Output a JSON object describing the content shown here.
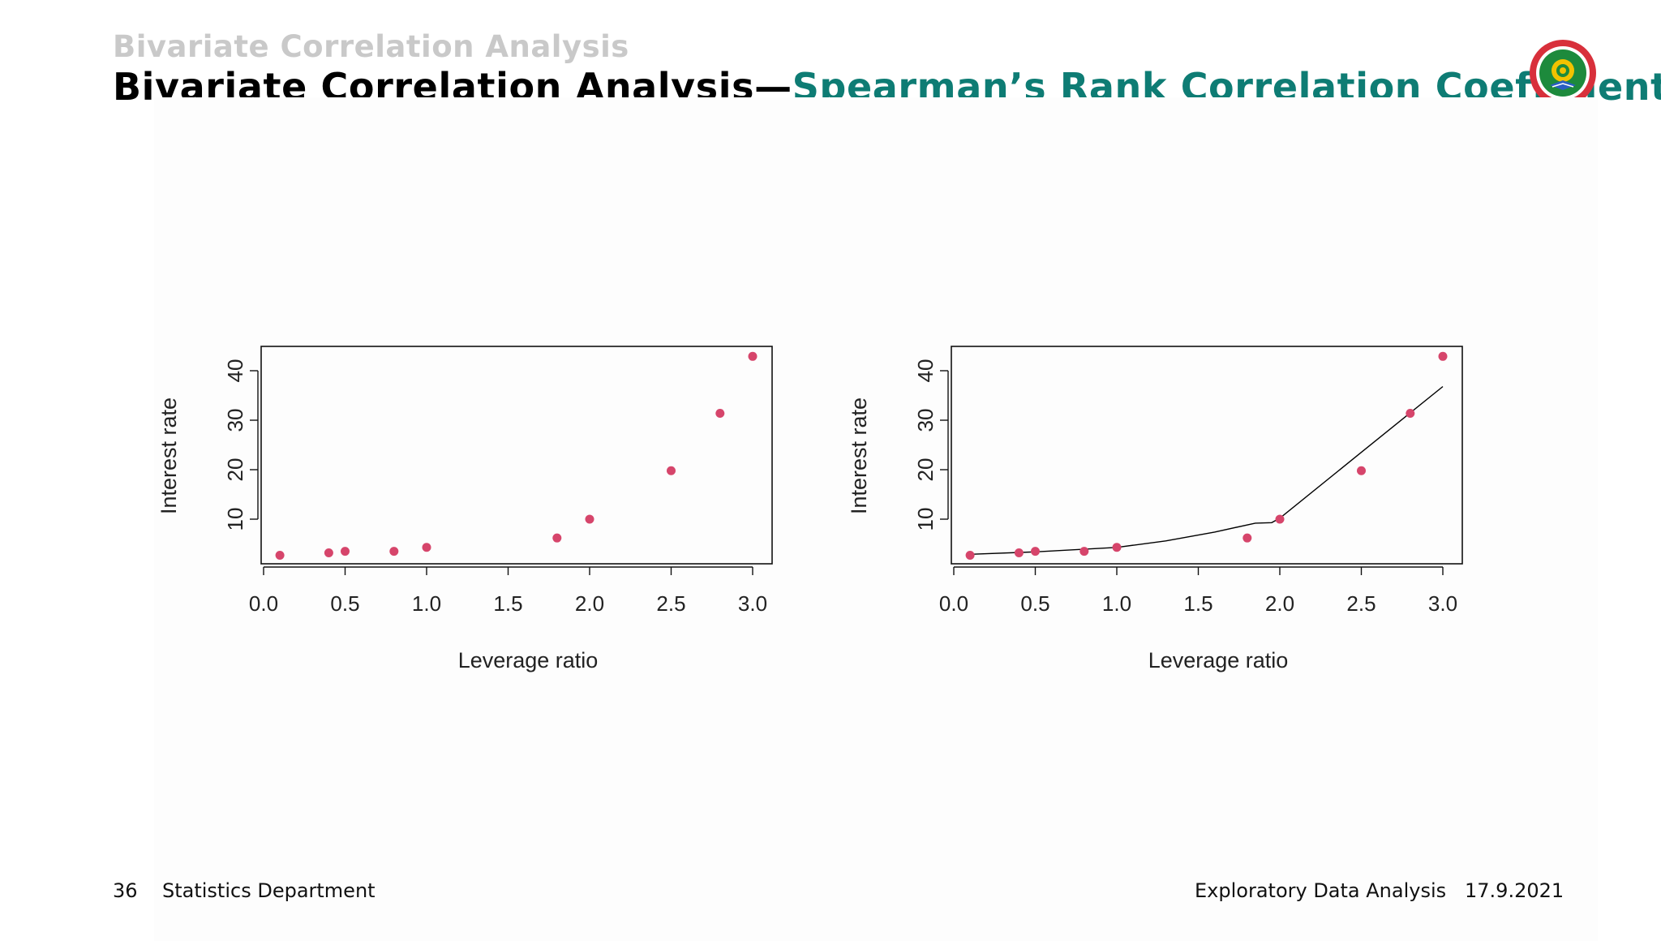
{
  "header": {
    "section": "Bivariate Correlation Analysis",
    "title_main": "Bivariate Correlation Analysis",
    "title_dash": "—",
    "title_accent": "Spearman’s Rank Correlation Coefficient"
  },
  "footer": {
    "page_number": "36",
    "department": "Statistics Department",
    "course": "Exploratory Data Analysis",
    "date": "17.9.2021"
  },
  "colors": {
    "accent": "#0e7c74",
    "point": "#d6456b",
    "line": "#000000"
  },
  "logo_icon": "university-seal-icon",
  "chart_data": [
    {
      "type": "scatter",
      "title": "",
      "xlabel": "Leverage ratio",
      "ylabel": "Interest rate",
      "xlim": [
        0,
        3.0
      ],
      "ylim": [
        1,
        43
      ],
      "xticks": [
        "0.0",
        "0.5",
        "1.0",
        "1.5",
        "2.0",
        "2.5",
        "3.0"
      ],
      "yticks": [
        "10",
        "20",
        "30",
        "40"
      ],
      "points": [
        {
          "x": 0.1,
          "y": 2.7
        },
        {
          "x": 0.4,
          "y": 3.2
        },
        {
          "x": 0.5,
          "y": 3.5
        },
        {
          "x": 0.8,
          "y": 3.5
        },
        {
          "x": 1.0,
          "y": 4.3
        },
        {
          "x": 1.8,
          "y": 6.2
        },
        {
          "x": 2.0,
          "y": 10.0
        },
        {
          "x": 2.5,
          "y": 19.8
        },
        {
          "x": 2.8,
          "y": 31.4
        },
        {
          "x": 3.0,
          "y": 42.9
        }
      ]
    },
    {
      "type": "scatter",
      "title": "",
      "xlabel": "Leverage ratio",
      "ylabel": "Interest rate",
      "xlim": [
        0,
        3.0
      ],
      "ylim": [
        1,
        43
      ],
      "xticks": [
        "0.0",
        "0.5",
        "1.0",
        "1.5",
        "2.0",
        "2.5",
        "3.0"
      ],
      "yticks": [
        "10",
        "20",
        "30",
        "40"
      ],
      "points": [
        {
          "x": 0.1,
          "y": 2.7
        },
        {
          "x": 0.4,
          "y": 3.2
        },
        {
          "x": 0.5,
          "y": 3.5
        },
        {
          "x": 0.8,
          "y": 3.5
        },
        {
          "x": 1.0,
          "y": 4.3
        },
        {
          "x": 1.8,
          "y": 6.2
        },
        {
          "x": 2.0,
          "y": 10.0
        },
        {
          "x": 2.5,
          "y": 19.8
        },
        {
          "x": 2.8,
          "y": 31.4
        },
        {
          "x": 3.0,
          "y": 42.9
        }
      ],
      "fit_line": [
        {
          "x": 0.1,
          "y": 2.9
        },
        {
          "x": 0.5,
          "y": 3.4
        },
        {
          "x": 1.0,
          "y": 4.3
        },
        {
          "x": 1.3,
          "y": 5.6
        },
        {
          "x": 1.6,
          "y": 7.4
        },
        {
          "x": 1.85,
          "y": 9.2
        },
        {
          "x": 1.95,
          "y": 9.3
        },
        {
          "x": 2.0,
          "y": 10.2
        },
        {
          "x": 2.5,
          "y": 23.5
        },
        {
          "x": 2.8,
          "y": 31.5
        },
        {
          "x": 3.0,
          "y": 36.8
        }
      ]
    }
  ]
}
